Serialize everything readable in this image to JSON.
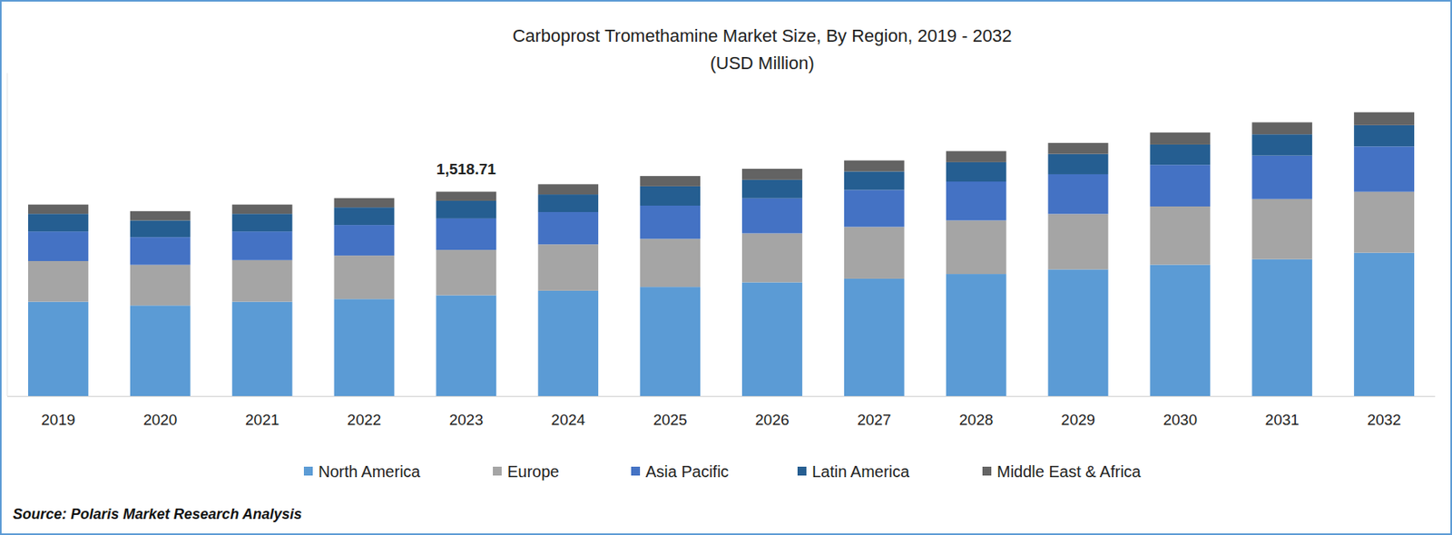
{
  "chart_data": {
    "type": "bar",
    "stacked": true,
    "title": "Carboprost Tromethamine Market Size, By Region, 2019 - 2032",
    "subtitle": "(USD Million)",
    "source": "Source: Polaris Market Research Analysis",
    "categories": [
      "2019",
      "2020",
      "2021",
      "2022",
      "2023",
      "2024",
      "2025",
      "2026",
      "2027",
      "2028",
      "2029",
      "2030",
      "2031",
      "2032"
    ],
    "series": [
      {
        "name": "North America",
        "color": "#5b9bd5",
        "values": [
          701,
          673,
          701,
          721,
          749,
          783,
          811,
          845,
          872,
          907,
          941,
          976,
          1017,
          1065
        ]
      },
      {
        "name": "Europe",
        "color": "#a5a5a5",
        "values": [
          302,
          302,
          309,
          323,
          337,
          344,
          357,
          364,
          385,
          398,
          412,
          433,
          447,
          453
        ]
      },
      {
        "name": "Asia Pacific",
        "color": "#4472c4",
        "values": [
          220,
          206,
          213,
          227,
          234,
          240,
          247,
          261,
          275,
          289,
          295,
          309,
          323,
          337
        ]
      },
      {
        "name": "Latin America",
        "color": "#255e91",
        "values": [
          131,
          124,
          131,
          131,
          131,
          131,
          144,
          137,
          137,
          144,
          151,
          151,
          158,
          158
        ]
      },
      {
        "name": "Middle East & Africa",
        "color": "#636363",
        "values": [
          69,
          69,
          69,
          69,
          67.71,
          76,
          76,
          82,
          82,
          82,
          82,
          89,
          89,
          96
        ]
      }
    ],
    "annotations": [
      {
        "x": "2023",
        "text": "1,518.71",
        "value": 1518.71
      }
    ],
    "ylim": [
      0,
      2400
    ],
    "tick_labels": "x",
    "grid": false,
    "legend": "bottom"
  }
}
